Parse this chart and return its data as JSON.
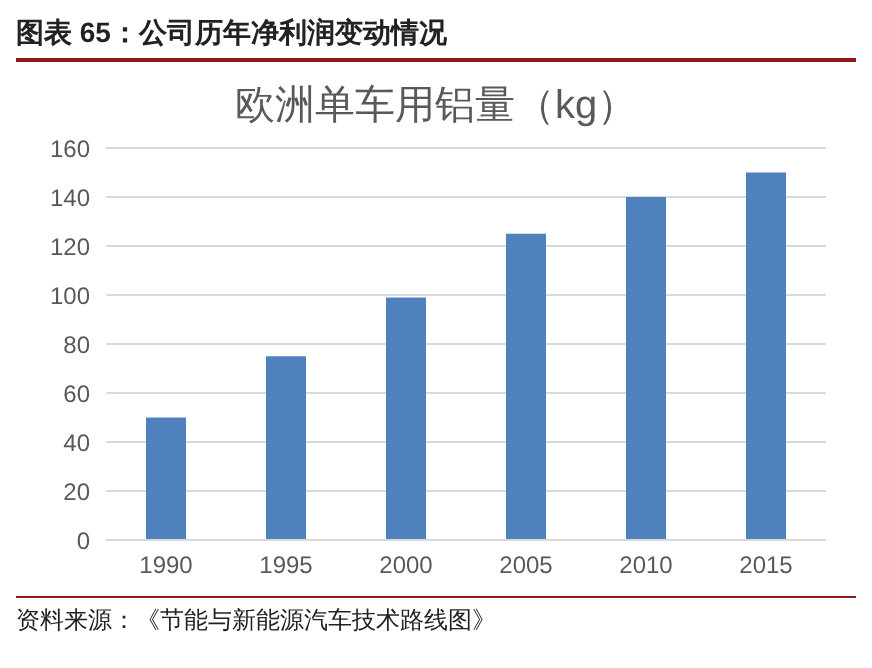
{
  "chart_data": {
    "type": "bar",
    "title": "图表 65：公司历年净利润变动情况",
    "subtitle": "欧洲单车用铝量（kg）",
    "categories": [
      "1990",
      "1995",
      "2000",
      "2005",
      "2010",
      "2015"
    ],
    "values": [
      50,
      75,
      99,
      125,
      140,
      150
    ],
    "color": "#4f81bd",
    "ylim": [
      0,
      160
    ],
    "yticks": [
      0,
      20,
      40,
      60,
      80,
      100,
      120,
      140,
      160
    ],
    "grid": "y",
    "annotations": [
      "资料来源：《节能与新能源汽车技术路线图》"
    ]
  }
}
